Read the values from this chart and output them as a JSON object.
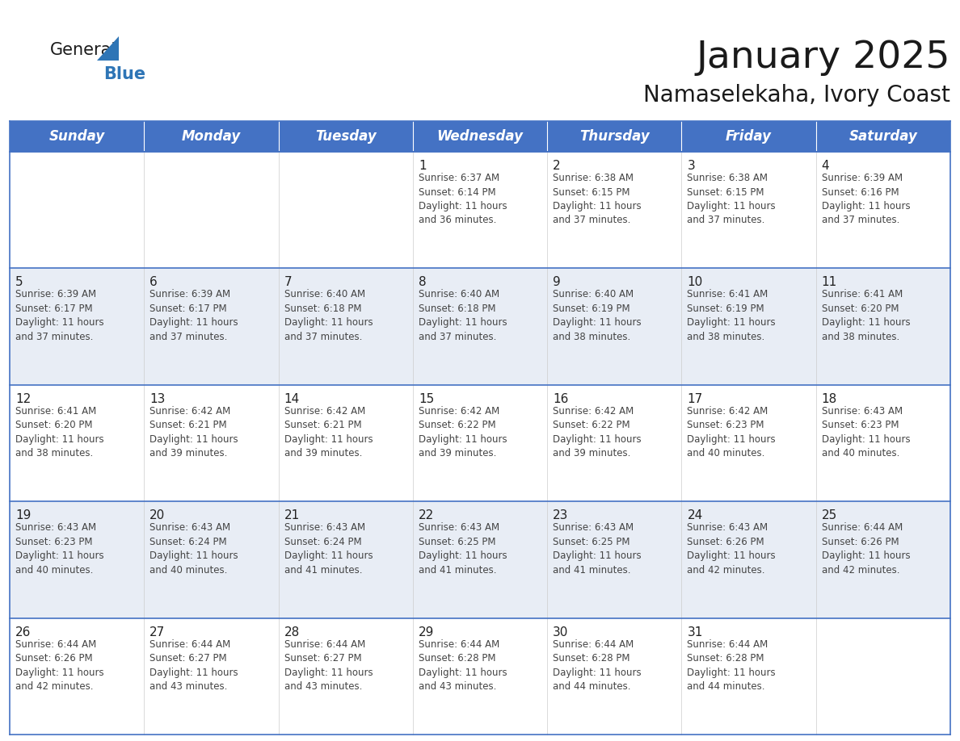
{
  "title": "January 2025",
  "subtitle": "Namaselekaha, Ivory Coast",
  "header_bg": "#4472C4",
  "header_text_color": "#FFFFFF",
  "header_font_size": 12,
  "days_of_week": [
    "Sunday",
    "Monday",
    "Tuesday",
    "Wednesday",
    "Thursday",
    "Friday",
    "Saturday"
  ],
  "title_font_size": 34,
  "subtitle_font_size": 20,
  "cell_text_color": "#333333",
  "day_number_color": "#222222",
  "general_text_color": "#1a1a1a",
  "general_blue_color": "#2e75b6",
  "grid_line_color": "#4472C4",
  "row_bg_even": "#e8edf5",
  "row_bg_odd": "#ffffff",
  "calendar": [
    [
      {
        "day": null,
        "text": ""
      },
      {
        "day": null,
        "text": ""
      },
      {
        "day": null,
        "text": ""
      },
      {
        "day": 1,
        "text": "Sunrise: 6:37 AM\nSunset: 6:14 PM\nDaylight: 11 hours\nand 36 minutes."
      },
      {
        "day": 2,
        "text": "Sunrise: 6:38 AM\nSunset: 6:15 PM\nDaylight: 11 hours\nand 37 minutes."
      },
      {
        "day": 3,
        "text": "Sunrise: 6:38 AM\nSunset: 6:15 PM\nDaylight: 11 hours\nand 37 minutes."
      },
      {
        "day": 4,
        "text": "Sunrise: 6:39 AM\nSunset: 6:16 PM\nDaylight: 11 hours\nand 37 minutes."
      }
    ],
    [
      {
        "day": 5,
        "text": "Sunrise: 6:39 AM\nSunset: 6:17 PM\nDaylight: 11 hours\nand 37 minutes."
      },
      {
        "day": 6,
        "text": "Sunrise: 6:39 AM\nSunset: 6:17 PM\nDaylight: 11 hours\nand 37 minutes."
      },
      {
        "day": 7,
        "text": "Sunrise: 6:40 AM\nSunset: 6:18 PM\nDaylight: 11 hours\nand 37 minutes."
      },
      {
        "day": 8,
        "text": "Sunrise: 6:40 AM\nSunset: 6:18 PM\nDaylight: 11 hours\nand 37 minutes."
      },
      {
        "day": 9,
        "text": "Sunrise: 6:40 AM\nSunset: 6:19 PM\nDaylight: 11 hours\nand 38 minutes."
      },
      {
        "day": 10,
        "text": "Sunrise: 6:41 AM\nSunset: 6:19 PM\nDaylight: 11 hours\nand 38 minutes."
      },
      {
        "day": 11,
        "text": "Sunrise: 6:41 AM\nSunset: 6:20 PM\nDaylight: 11 hours\nand 38 minutes."
      }
    ],
    [
      {
        "day": 12,
        "text": "Sunrise: 6:41 AM\nSunset: 6:20 PM\nDaylight: 11 hours\nand 38 minutes."
      },
      {
        "day": 13,
        "text": "Sunrise: 6:42 AM\nSunset: 6:21 PM\nDaylight: 11 hours\nand 39 minutes."
      },
      {
        "day": 14,
        "text": "Sunrise: 6:42 AM\nSunset: 6:21 PM\nDaylight: 11 hours\nand 39 minutes."
      },
      {
        "day": 15,
        "text": "Sunrise: 6:42 AM\nSunset: 6:22 PM\nDaylight: 11 hours\nand 39 minutes."
      },
      {
        "day": 16,
        "text": "Sunrise: 6:42 AM\nSunset: 6:22 PM\nDaylight: 11 hours\nand 39 minutes."
      },
      {
        "day": 17,
        "text": "Sunrise: 6:42 AM\nSunset: 6:23 PM\nDaylight: 11 hours\nand 40 minutes."
      },
      {
        "day": 18,
        "text": "Sunrise: 6:43 AM\nSunset: 6:23 PM\nDaylight: 11 hours\nand 40 minutes."
      }
    ],
    [
      {
        "day": 19,
        "text": "Sunrise: 6:43 AM\nSunset: 6:23 PM\nDaylight: 11 hours\nand 40 minutes."
      },
      {
        "day": 20,
        "text": "Sunrise: 6:43 AM\nSunset: 6:24 PM\nDaylight: 11 hours\nand 40 minutes."
      },
      {
        "day": 21,
        "text": "Sunrise: 6:43 AM\nSunset: 6:24 PM\nDaylight: 11 hours\nand 41 minutes."
      },
      {
        "day": 22,
        "text": "Sunrise: 6:43 AM\nSunset: 6:25 PM\nDaylight: 11 hours\nand 41 minutes."
      },
      {
        "day": 23,
        "text": "Sunrise: 6:43 AM\nSunset: 6:25 PM\nDaylight: 11 hours\nand 41 minutes."
      },
      {
        "day": 24,
        "text": "Sunrise: 6:43 AM\nSunset: 6:26 PM\nDaylight: 11 hours\nand 42 minutes."
      },
      {
        "day": 25,
        "text": "Sunrise: 6:44 AM\nSunset: 6:26 PM\nDaylight: 11 hours\nand 42 minutes."
      }
    ],
    [
      {
        "day": 26,
        "text": "Sunrise: 6:44 AM\nSunset: 6:26 PM\nDaylight: 11 hours\nand 42 minutes."
      },
      {
        "day": 27,
        "text": "Sunrise: 6:44 AM\nSunset: 6:27 PM\nDaylight: 11 hours\nand 43 minutes."
      },
      {
        "day": 28,
        "text": "Sunrise: 6:44 AM\nSunset: 6:27 PM\nDaylight: 11 hours\nand 43 minutes."
      },
      {
        "day": 29,
        "text": "Sunrise: 6:44 AM\nSunset: 6:28 PM\nDaylight: 11 hours\nand 43 minutes."
      },
      {
        "day": 30,
        "text": "Sunrise: 6:44 AM\nSunset: 6:28 PM\nDaylight: 11 hours\nand 44 minutes."
      },
      {
        "day": 31,
        "text": "Sunrise: 6:44 AM\nSunset: 6:28 PM\nDaylight: 11 hours\nand 44 minutes."
      },
      {
        "day": null,
        "text": ""
      }
    ]
  ]
}
